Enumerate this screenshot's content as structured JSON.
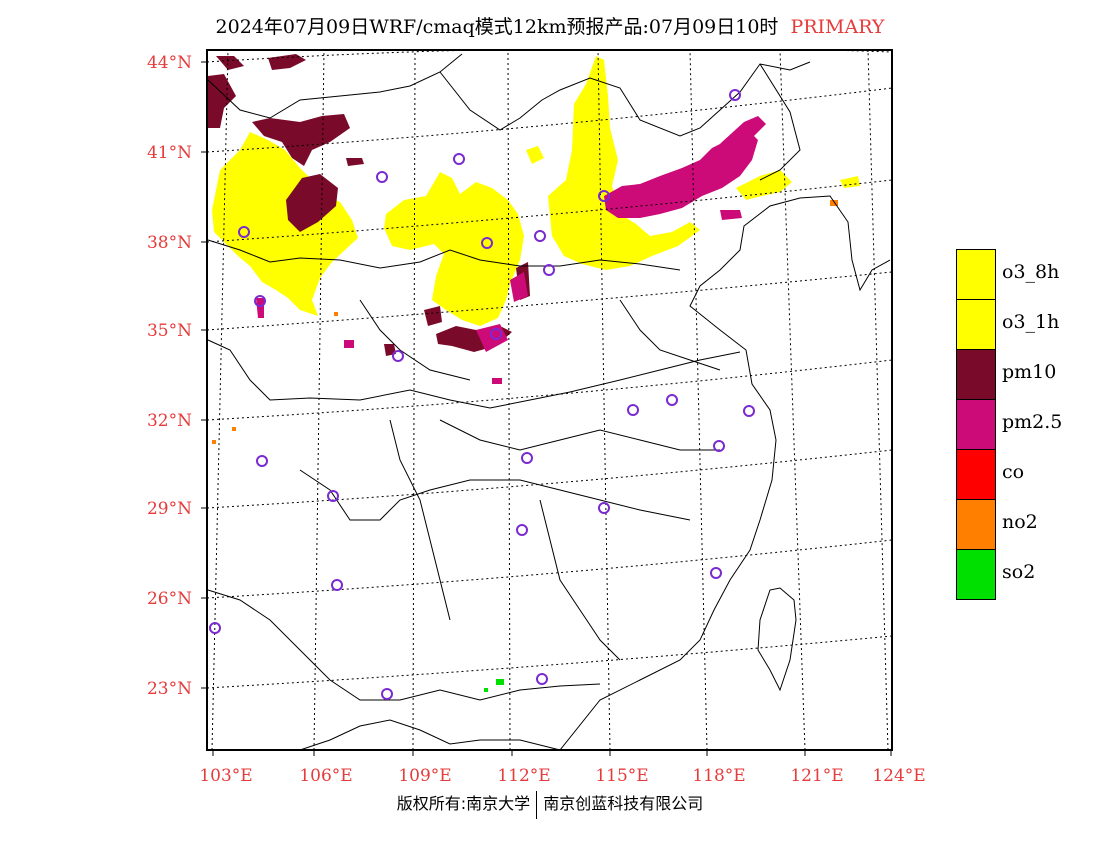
{
  "title": {
    "main": "2024年07月09日WRF/cmaq模式12km预报产品:07月09日10时",
    "tag": "PRIMARY"
  },
  "map": {
    "lat_labels": [
      "44°N",
      "41°N",
      "38°N",
      "35°N",
      "32°N",
      "29°N",
      "26°N",
      "23°N"
    ],
    "lon_labels": [
      "103°E",
      "106°E",
      "109°E",
      "112°E",
      "115°E",
      "118°E",
      "121°E",
      "124°E"
    ]
  },
  "legend": [
    {
      "label": "o3_8h",
      "color": "#ffff00"
    },
    {
      "label": "o3_1h",
      "color": "#ffff00"
    },
    {
      "label": "pm10",
      "color": "#7a0a2a"
    },
    {
      "label": "pm2.5",
      "color": "#cc0a78"
    },
    {
      "label": "co",
      "color": "#ff0000"
    },
    {
      "label": "no2",
      "color": "#ff7f00"
    },
    {
      "label": "so2",
      "color": "#00e000"
    }
  ],
  "footer": {
    "left": "版权所有:南京大学",
    "right": "南京创蓝科技有限公司"
  }
}
